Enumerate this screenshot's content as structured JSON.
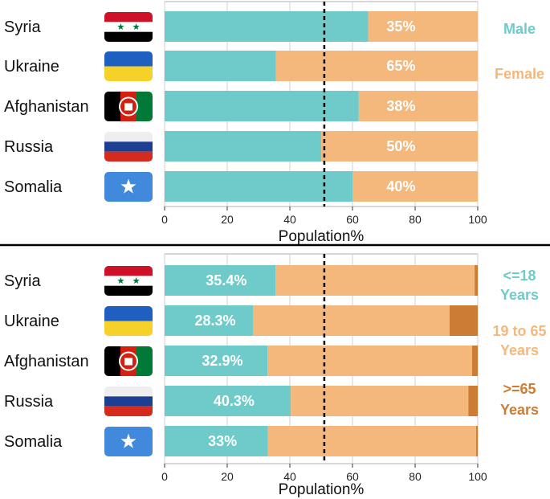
{
  "colors": {
    "teal": "#6fcaca",
    "peach": "#f5b87c",
    "brown": "#cd7c35",
    "grid": "#d0d0d0",
    "frame": "#b0b0b0"
  },
  "chart_data": [
    {
      "type": "bar",
      "orientation": "horizontal",
      "stacked": true,
      "xlabel": "Population%",
      "xlim": [
        0,
        100
      ],
      "xticks": [
        "0",
        "20",
        "40",
        "60",
        "80",
        "100"
      ],
      "reference_line": 51,
      "categories": [
        "Syria",
        "Ukraine",
        "Afghanistan",
        "Russia",
        "Somalia"
      ],
      "flags": [
        "syria-flag",
        "ukraine-flag",
        "afghanistan-flag",
        "russia-flag",
        "somalia-flag"
      ],
      "series": [
        {
          "name": "Male",
          "color": "#6fcaca",
          "values": [
            65,
            35.5,
            62,
            50,
            60
          ]
        },
        {
          "name": "Female",
          "color": "#f5b87c",
          "values": [
            35,
            64.5,
            38,
            50,
            40
          ]
        }
      ],
      "data_labels": [
        "35%",
        "65%",
        "38%",
        "50%",
        "40%"
      ],
      "legend": [
        "Male",
        "Female"
      ]
    },
    {
      "type": "bar",
      "orientation": "horizontal",
      "stacked": true,
      "xlabel": "Population%",
      "xlim": [
        0,
        100
      ],
      "xticks": [
        "0",
        "20",
        "40",
        "60",
        "80",
        "100"
      ],
      "reference_line": 51,
      "categories": [
        "Syria",
        "Ukraine",
        "Afghanistan",
        "Russia",
        "Somalia"
      ],
      "flags": [
        "syria-flag",
        "ukraine-flag",
        "afghanistan-flag",
        "russia-flag",
        "somalia-flag"
      ],
      "series": [
        {
          "name": "<=18 Years",
          "color": "#6fcaca",
          "values": [
            35.4,
            28.3,
            32.9,
            40.3,
            33
          ]
        },
        {
          "name": "19 to 65 Years",
          "color": "#f5b87c",
          "values": [
            63.6,
            62.7,
            65.3,
            56.7,
            66.5
          ]
        },
        {
          "name": ">=65 Years",
          "color": "#cd7c35",
          "values": [
            1.0,
            9.0,
            1.8,
            3.0,
            0.5
          ]
        }
      ],
      "data_labels": [
        "35.4%",
        "28.3%",
        "32.9%",
        "40.3%",
        "33%"
      ],
      "legend": [
        "<=18",
        "Years",
        "19 to 65",
        "Years",
        ">=65",
        "Years"
      ]
    }
  ]
}
